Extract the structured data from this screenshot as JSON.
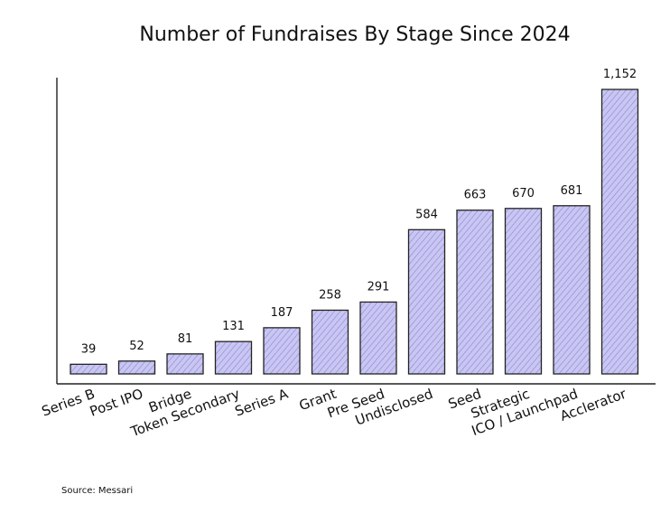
{
  "chart_data": {
    "type": "bar",
    "title": "Number of Fundraises By Stage Since 2024",
    "categories": [
      "Series B",
      "Post IPO",
      "Bridge",
      "Token Secondary",
      "Series A",
      "Grant",
      "Pre Seed",
      "Undisclosed",
      "Seed",
      "Strategic",
      "ICO / Launchpad",
      "Acclerator"
    ],
    "values": [
      39,
      52,
      81,
      131,
      187,
      258,
      291,
      584,
      663,
      670,
      681,
      1152
    ],
    "value_labels": [
      "39",
      "52",
      "81",
      "131",
      "187",
      "258",
      "291",
      "584",
      "663",
      "670",
      "681",
      "1,152"
    ],
    "xlabel": "",
    "ylabel": "",
    "ylim": [
      0,
      1152
    ],
    "grid": false,
    "bar_color": "#c9c6f2",
    "hatch_color": "#4a46b8"
  },
  "source": "Source: Messari"
}
